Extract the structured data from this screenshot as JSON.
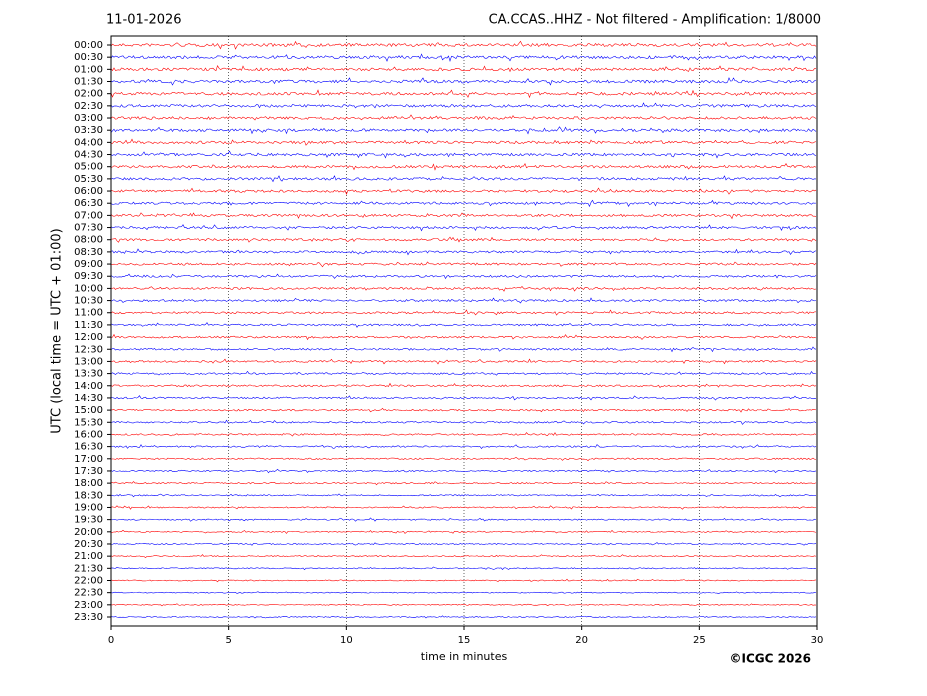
{
  "chart_data": {
    "type": "helicorder",
    "title_left": "11-01-2026",
    "title": "CA.CCAS..HHZ - Not filtered - Amplification: 1/8000",
    "x_label": "time in minutes",
    "y_label": "UTC (local time = UTC + 01:00)",
    "copyright": "©ICGC 2026",
    "categories": [
      "00:00",
      "00:30",
      "01:00",
      "01:30",
      "02:00",
      "02:30",
      "03:00",
      "03:30",
      "04:00",
      "04:30",
      "05:00",
      "05:30",
      "06:00",
      "06:30",
      "07:00",
      "07:30",
      "08:00",
      "08:30",
      "09:00",
      "09:30",
      "10:00",
      "10:30",
      "11:00",
      "11:30",
      "12:00",
      "12:30",
      "13:00",
      "13:30",
      "14:00",
      "14:30",
      "15:00",
      "15:30",
      "16:00",
      "16:30",
      "17:00",
      "17:30",
      "18:00",
      "18:30",
      "19:00",
      "19:30",
      "20:00",
      "20:30",
      "21:00",
      "21:30",
      "22:00",
      "22:30",
      "23:00",
      "23:30"
    ],
    "colors": [
      "#ff0000",
      "#0000ff"
    ],
    "xlim": [
      0,
      30
    ],
    "xticks": [
      0,
      5,
      10,
      15,
      20,
      25,
      30
    ],
    "grid": true
  }
}
